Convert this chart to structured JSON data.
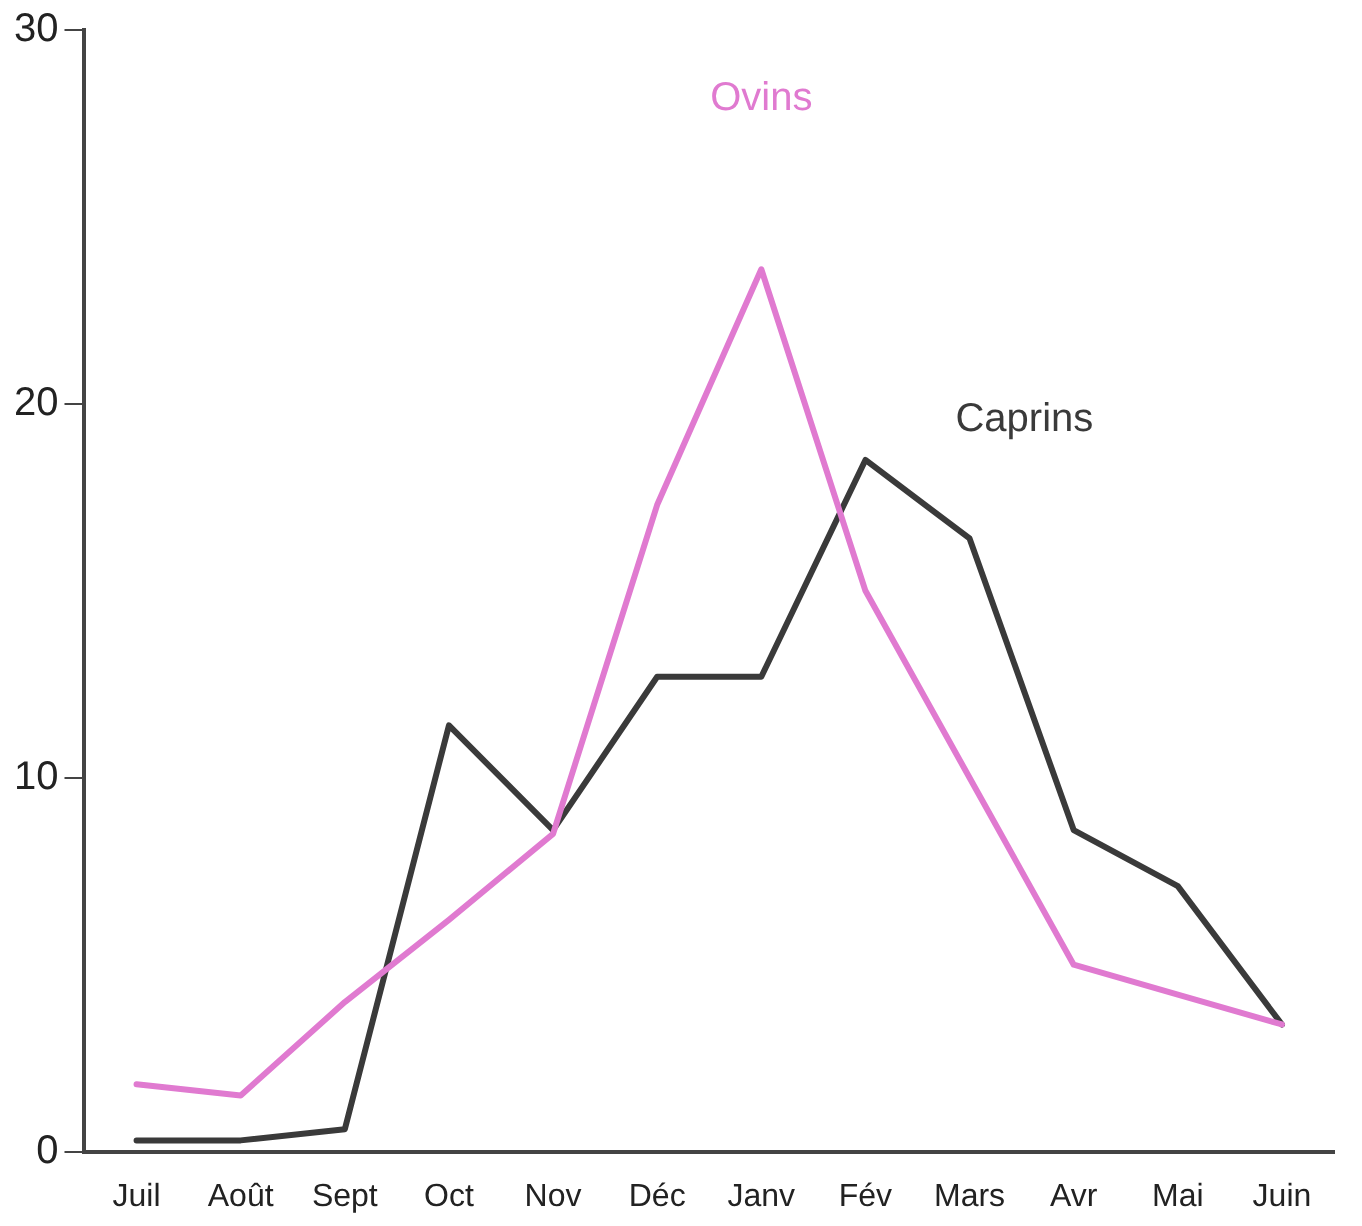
{
  "chart_data": {
    "type": "line",
    "categories": [
      "Juil",
      "Août",
      "Sept",
      "Oct",
      "Nov",
      "Déc",
      "Janv",
      "Fév",
      "Mars",
      "Avr",
      "Mai",
      "Juin"
    ],
    "series": [
      {
        "name": "Ovins",
        "color": "#e07ad0",
        "values": [
          1.8,
          1.5,
          4,
          6.2,
          8.5,
          17.3,
          23.6,
          15,
          10,
          5,
          4.2,
          3.4
        ]
      },
      {
        "name": "Caprins",
        "color": "#3a3a3a",
        "values": [
          0.3,
          0.3,
          0.6,
          11.4,
          8.6,
          12.7,
          12.7,
          18.5,
          16.4,
          8.6,
          7.1,
          3.4
        ]
      }
    ],
    "ylim": [
      0,
      30
    ],
    "yticks": [
      0,
      10,
      20,
      30
    ],
    "grid": false,
    "legend": false,
    "marker": "none",
    "line_style": "solid"
  }
}
